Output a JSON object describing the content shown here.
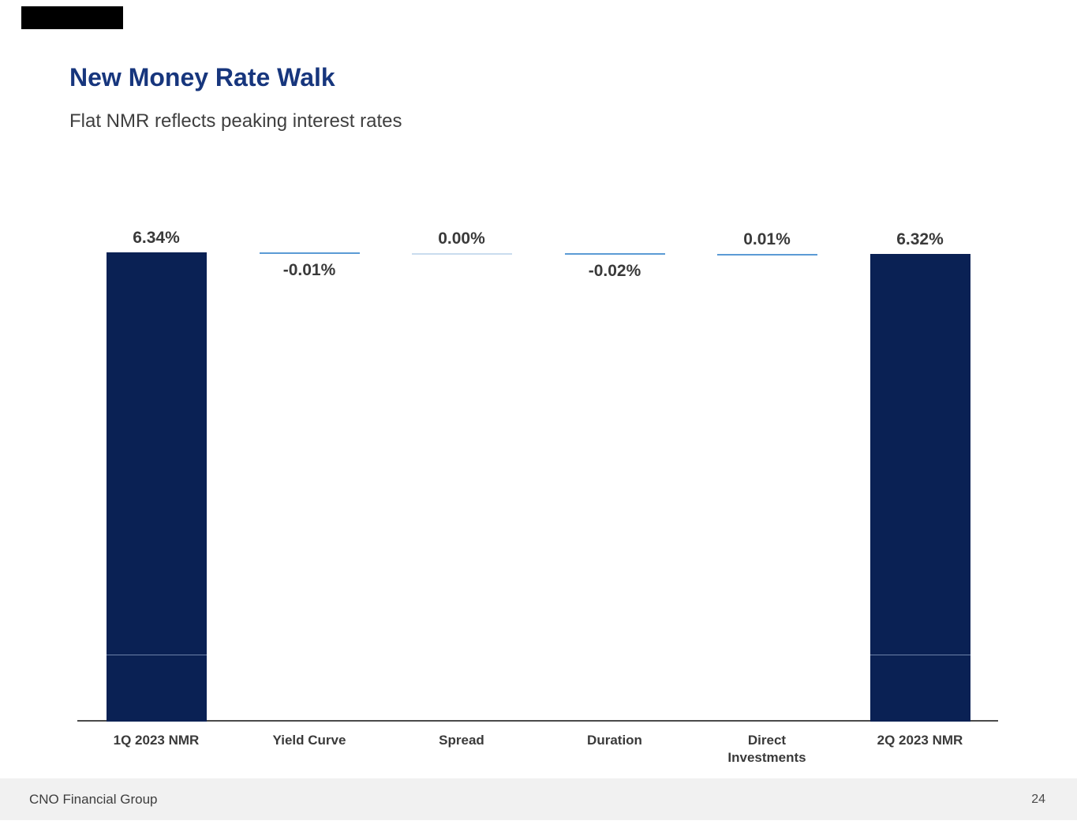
{
  "header": {
    "title": "New Money Rate Walk",
    "subtitle": "Flat NMR reflects peaking interest rates"
  },
  "footer": {
    "company": "CNO Financial Group",
    "page_number": "24"
  },
  "colors": {
    "title_blue": "#17367d",
    "bar_navy": "#0a2154",
    "delta_blue": "#5b9bd5",
    "zero_line": "#c9dcee",
    "axis": "#4a4a4a",
    "text_dark": "#3a3a3a",
    "footer_bg": "#f1f1f1",
    "logo_black": "#000000"
  },
  "chart_data": {
    "type": "bar",
    "subtype": "waterfall",
    "title": "New Money Rate Walk",
    "categories": [
      "1Q 2023 NMR",
      "Yield Curve",
      "Spread",
      "Duration",
      "Direct Investments",
      "2Q 2023 NMR"
    ],
    "series": [
      {
        "name": "New Money Rate",
        "values": [
          6.34,
          -0.01,
          0.0,
          -0.02,
          0.01,
          6.32
        ]
      }
    ],
    "value_labels": [
      "6.34%",
      "-0.01%",
      "0.00%",
      "-0.02%",
      "0.01%",
      "6.32%"
    ],
    "bar_types": [
      "total",
      "delta",
      "delta",
      "delta",
      "delta",
      "total"
    ],
    "label_positions": [
      "above",
      "below",
      "above",
      "below",
      "above",
      "above"
    ],
    "xlabel": "",
    "ylabel": "",
    "ylim": [
      0,
      6.6
    ],
    "grid": false,
    "legend": false
  }
}
